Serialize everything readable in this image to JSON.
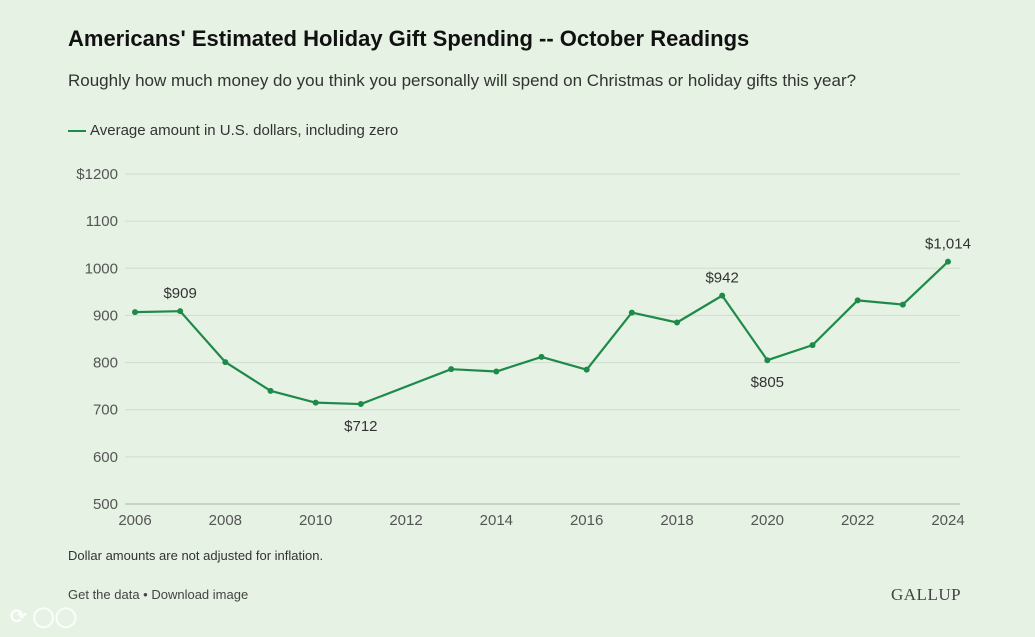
{
  "header": {
    "title": "Americans' Estimated Holiday Gift Spending -- October Readings",
    "subtitle": "Roughly how much money do you think you personally will spend on Christmas or holiday gifts this year?"
  },
  "colors": {
    "line": "#1e8a4a",
    "grid": "#d2dccf",
    "background": "#e6f2e4"
  },
  "chart_data": {
    "type": "line",
    "title": "Americans' Estimated Holiday Gift Spending -- October Readings",
    "xlabel": "",
    "ylabel": "",
    "ylim": [
      500,
      1200
    ],
    "xlim": [
      2006,
      2024
    ],
    "y_ticks": [
      {
        "value": 1200,
        "label": "$1200"
      },
      {
        "value": 1100,
        "label": "1100"
      },
      {
        "value": 1000,
        "label": "1000"
      },
      {
        "value": 900,
        "label": "900"
      },
      {
        "value": 800,
        "label": "800"
      },
      {
        "value": 700,
        "label": "700"
      },
      {
        "value": 600,
        "label": "600"
      },
      {
        "value": 500,
        "label": "500"
      }
    ],
    "x_ticks": [
      2006,
      2008,
      2010,
      2012,
      2014,
      2016,
      2018,
      2020,
      2022,
      2024
    ],
    "series": [
      {
        "name": "Average amount in U.S. dollars, including zero",
        "x": [
          2006,
          2007,
          2008,
          2009,
          2010,
          2011,
          2013,
          2014,
          2015,
          2016,
          2017,
          2018,
          2019,
          2020,
          2021,
          2022,
          2023,
          2024
        ],
        "values": [
          907,
          909,
          801,
          740,
          715,
          712,
          786,
          781,
          812,
          785,
          906,
          885,
          942,
          805,
          837,
          932,
          923,
          1014
        ]
      }
    ],
    "annotations": [
      {
        "x": 2007,
        "value": 909,
        "label": "$909",
        "position": "above"
      },
      {
        "x": 2011,
        "value": 712,
        "label": "$712",
        "position": "below"
      },
      {
        "x": 2019,
        "value": 942,
        "label": "$942",
        "position": "above"
      },
      {
        "x": 2020,
        "value": 805,
        "label": "$805",
        "position": "below"
      },
      {
        "x": 2024,
        "value": 1014,
        "label": "$1,014",
        "position": "above"
      }
    ],
    "legend": "top-left"
  },
  "footer": {
    "note": "Dollar amounts are not adjusted for inflation.",
    "get_data": "Get the data",
    "separator": " • ",
    "download": "Download image",
    "brand": "GALLUP"
  }
}
